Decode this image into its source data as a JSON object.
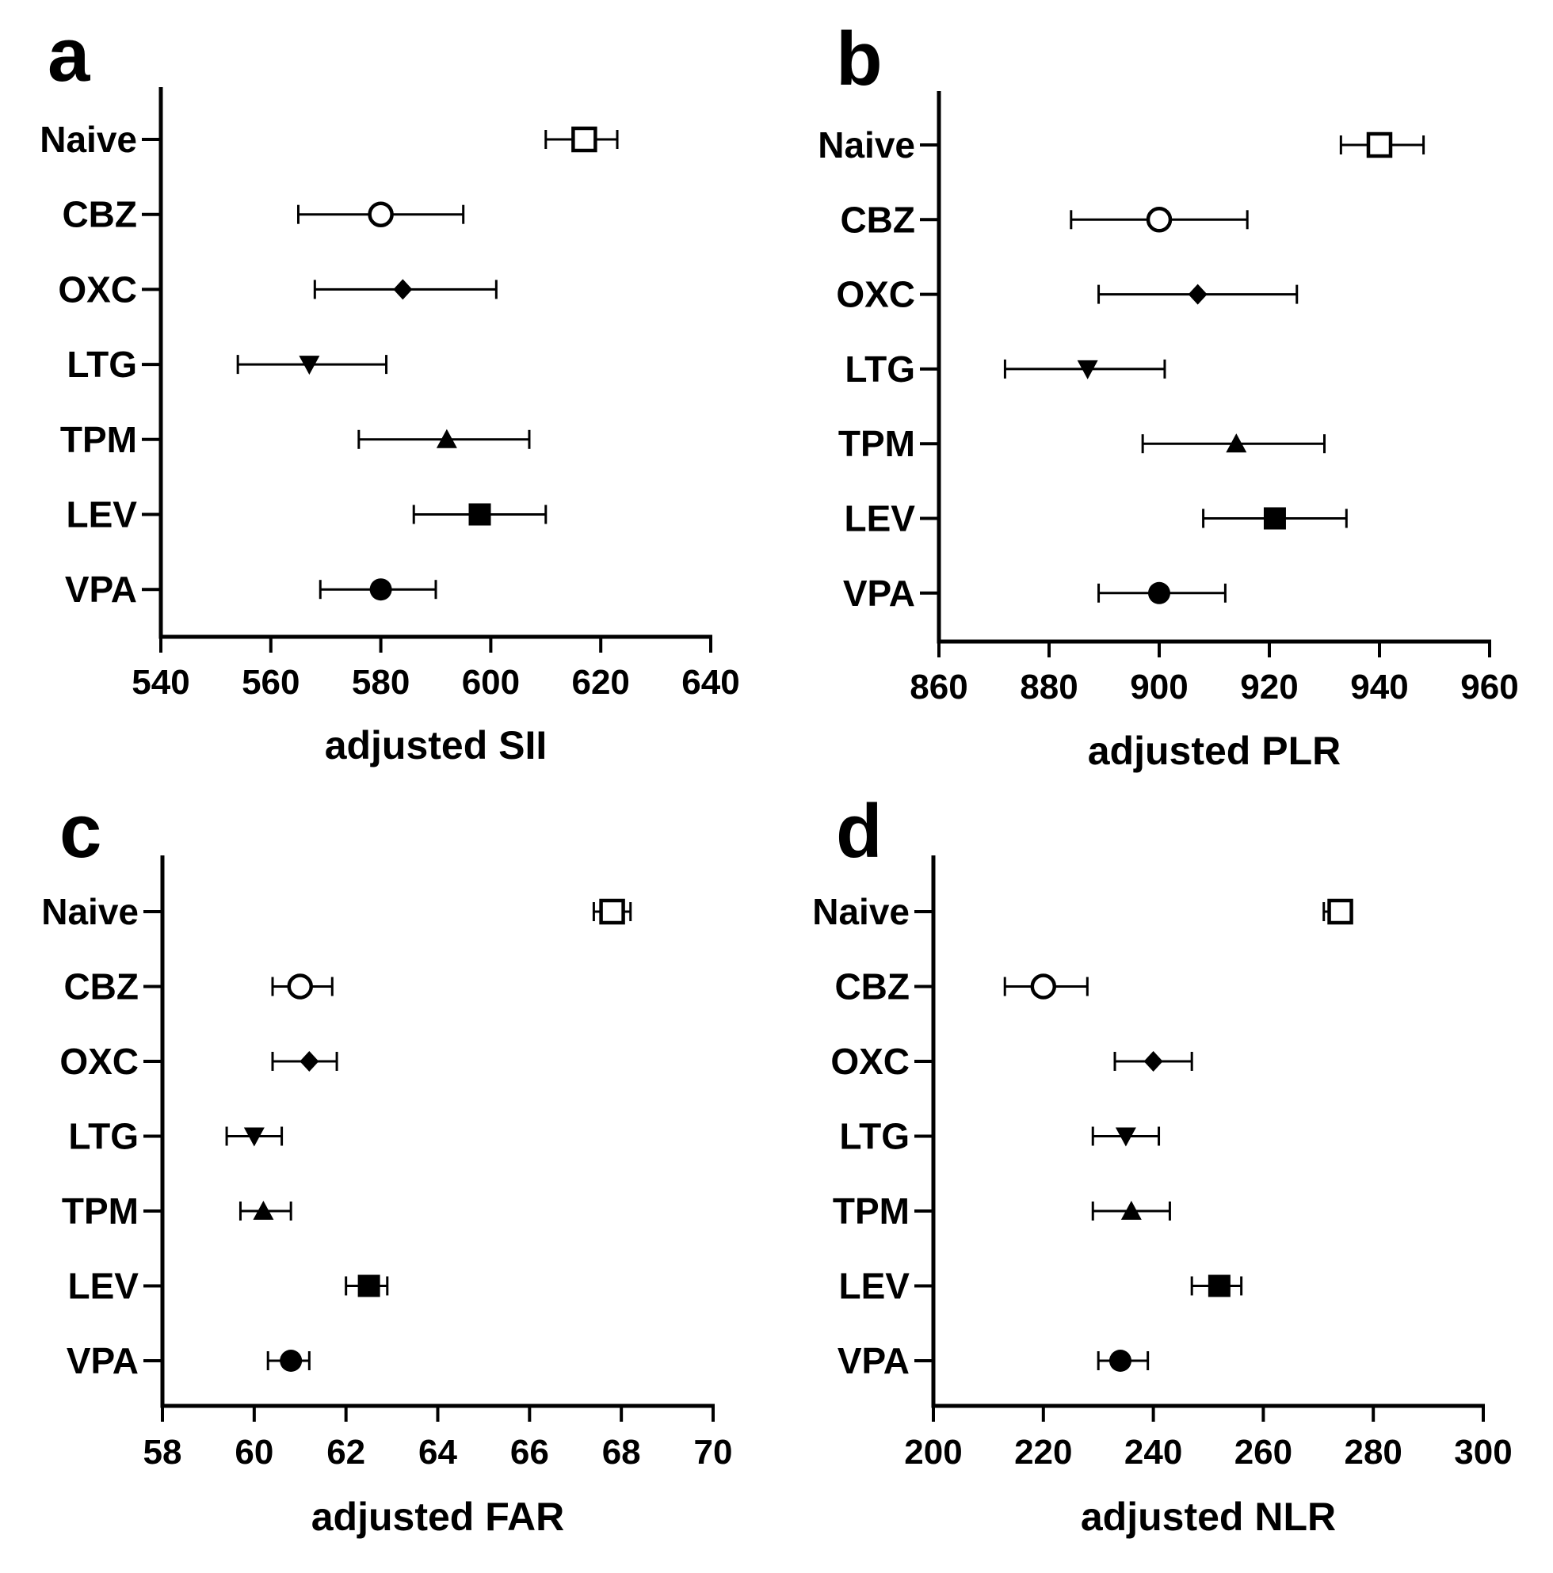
{
  "colors": {
    "ink": "#000000",
    "background": "#ffffff"
  },
  "chart_data": [
    {
      "panel": "a",
      "type": "scatter",
      "orientation": "horizontal",
      "xlabel": "adjusted SII",
      "xlim": [
        540,
        640
      ],
      "xticks": [
        "540",
        "560",
        "580",
        "600",
        "620",
        "640"
      ],
      "categories": [
        "Naive",
        "CBZ",
        "OXC",
        "LTG",
        "TPM",
        "LEV",
        "VPA"
      ],
      "points": [
        {
          "label": "Naive",
          "value": 617,
          "low": 610,
          "high": 623,
          "marker": "open-square"
        },
        {
          "label": "CBZ",
          "value": 580,
          "low": 565,
          "high": 595,
          "marker": "open-circle"
        },
        {
          "label": "OXC",
          "value": 584,
          "low": 568,
          "high": 601,
          "marker": "filled-diamond"
        },
        {
          "label": "LTG",
          "value": 567,
          "low": 554,
          "high": 581,
          "marker": "filled-triangle-down"
        },
        {
          "label": "TPM",
          "value": 592,
          "low": 576,
          "high": 607,
          "marker": "filled-triangle-up"
        },
        {
          "label": "LEV",
          "value": 598,
          "low": 586,
          "high": 610,
          "marker": "filled-square"
        },
        {
          "label": "VPA",
          "value": 580,
          "low": 569,
          "high": 590,
          "marker": "filled-circle"
        }
      ],
      "grid": false
    },
    {
      "panel": "b",
      "type": "scatter",
      "orientation": "horizontal",
      "xlabel": "adjusted PLR",
      "xlim": [
        860,
        960
      ],
      "xticks": [
        "860",
        "880",
        "900",
        "920",
        "940",
        "960"
      ],
      "categories": [
        "Naive",
        "CBZ",
        "OXC",
        "LTG",
        "TPM",
        "LEV",
        "VPA"
      ],
      "points": [
        {
          "label": "Naive",
          "value": 940,
          "low": 933,
          "high": 948,
          "marker": "open-square"
        },
        {
          "label": "CBZ",
          "value": 900,
          "low": 884,
          "high": 916,
          "marker": "open-circle"
        },
        {
          "label": "OXC",
          "value": 907,
          "low": 889,
          "high": 925,
          "marker": "filled-diamond"
        },
        {
          "label": "LTG",
          "value": 887,
          "low": 872,
          "high": 901,
          "marker": "filled-triangle-down"
        },
        {
          "label": "TPM",
          "value": 914,
          "low": 897,
          "high": 930,
          "marker": "filled-triangle-up"
        },
        {
          "label": "LEV",
          "value": 921,
          "low": 908,
          "high": 934,
          "marker": "filled-square"
        },
        {
          "label": "VPA",
          "value": 900,
          "low": 889,
          "high": 912,
          "marker": "filled-circle"
        }
      ],
      "grid": false
    },
    {
      "panel": "c",
      "type": "scatter",
      "orientation": "horizontal",
      "xlabel": "adjusted FAR",
      "xlim": [
        58,
        70
      ],
      "xticks": [
        "58",
        "60",
        "62",
        "64",
        "66",
        "68",
        "70"
      ],
      "categories": [
        "Naive",
        "CBZ",
        "OXC",
        "LTG",
        "TPM",
        "LEV",
        "VPA"
      ],
      "points": [
        {
          "label": "Naive",
          "value": 67.8,
          "low": 67.4,
          "high": 68.2,
          "marker": "open-square"
        },
        {
          "label": "CBZ",
          "value": 61.0,
          "low": 60.4,
          "high": 61.7,
          "marker": "open-circle"
        },
        {
          "label": "OXC",
          "value": 61.2,
          "low": 60.4,
          "high": 61.8,
          "marker": "filled-diamond"
        },
        {
          "label": "LTG",
          "value": 60.0,
          "low": 59.4,
          "high": 60.6,
          "marker": "filled-triangle-down"
        },
        {
          "label": "TPM",
          "value": 60.2,
          "low": 59.7,
          "high": 60.8,
          "marker": "filled-triangle-up"
        },
        {
          "label": "LEV",
          "value": 62.5,
          "low": 62.0,
          "high": 62.9,
          "marker": "filled-square"
        },
        {
          "label": "VPA",
          "value": 60.8,
          "low": 60.3,
          "high": 61.2,
          "marker": "filled-circle"
        }
      ],
      "grid": false
    },
    {
      "panel": "d",
      "type": "scatter",
      "orientation": "horizontal",
      "xlabel": "adjusted NLR",
      "xlim": [
        200,
        300
      ],
      "xticks": [
        "200",
        "220",
        "240",
        "260",
        "280",
        "300"
      ],
      "categories": [
        "Naive",
        "CBZ",
        "OXC",
        "LTG",
        "TPM",
        "LEV",
        "VPA"
      ],
      "points": [
        {
          "label": "Naive",
          "value": 274,
          "low": 271,
          "high": 276,
          "marker": "open-square"
        },
        {
          "label": "CBZ",
          "value": 220,
          "low": 213,
          "high": 228,
          "marker": "open-circle"
        },
        {
          "label": "OXC",
          "value": 240,
          "low": 233,
          "high": 247,
          "marker": "filled-diamond"
        },
        {
          "label": "LTG",
          "value": 235,
          "low": 229,
          "high": 241,
          "marker": "filled-triangle-down"
        },
        {
          "label": "TPM",
          "value": 236,
          "low": 229,
          "high": 243,
          "marker": "filled-triangle-up"
        },
        {
          "label": "LEV",
          "value": 252,
          "low": 247,
          "high": 256,
          "marker": "filled-square"
        },
        {
          "label": "VPA",
          "value": 234,
          "low": 230,
          "high": 239,
          "marker": "filled-circle"
        }
      ],
      "grid": false
    }
  ]
}
